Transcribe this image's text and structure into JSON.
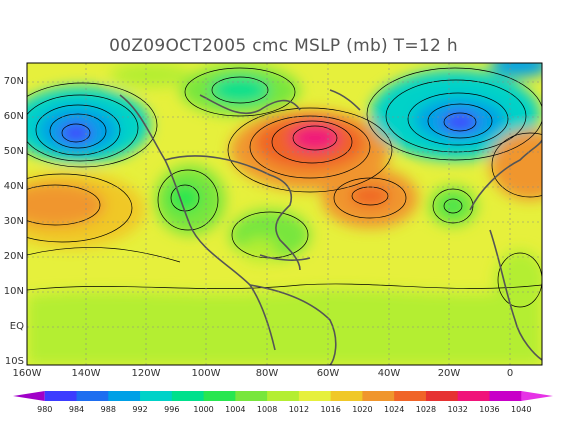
{
  "map": {
    "title": "00Z09OCT2005 cmc MSLP (mb) T=12 h",
    "lat_labels": [
      "70N",
      "60N",
      "50N",
      "40N",
      "30N",
      "20N",
      "10N",
      "EQ",
      "10S"
    ],
    "lon_labels": [
      "160W",
      "140W",
      "120W",
      "100W",
      "80W",
      "60W",
      "40W",
      "20W",
      "0"
    ],
    "colorbar": {
      "levels": [
        "980",
        "984",
        "988",
        "992",
        "996",
        "1000",
        "1004",
        "1008",
        "1012",
        "1016",
        "1020",
        "1024",
        "1028",
        "1032",
        "1036",
        "1040"
      ],
      "colors": [
        "#a000c8",
        "#3c3cff",
        "#1e6ef0",
        "#00a0e6",
        "#00d2c8",
        "#00e08c",
        "#28e650",
        "#78e63c",
        "#b4ee32",
        "#e6f03c",
        "#f0c828",
        "#f0962d",
        "#f06428",
        "#e63232",
        "#f0147a",
        "#c800c8",
        "#e633e6"
      ]
    }
  }
}
